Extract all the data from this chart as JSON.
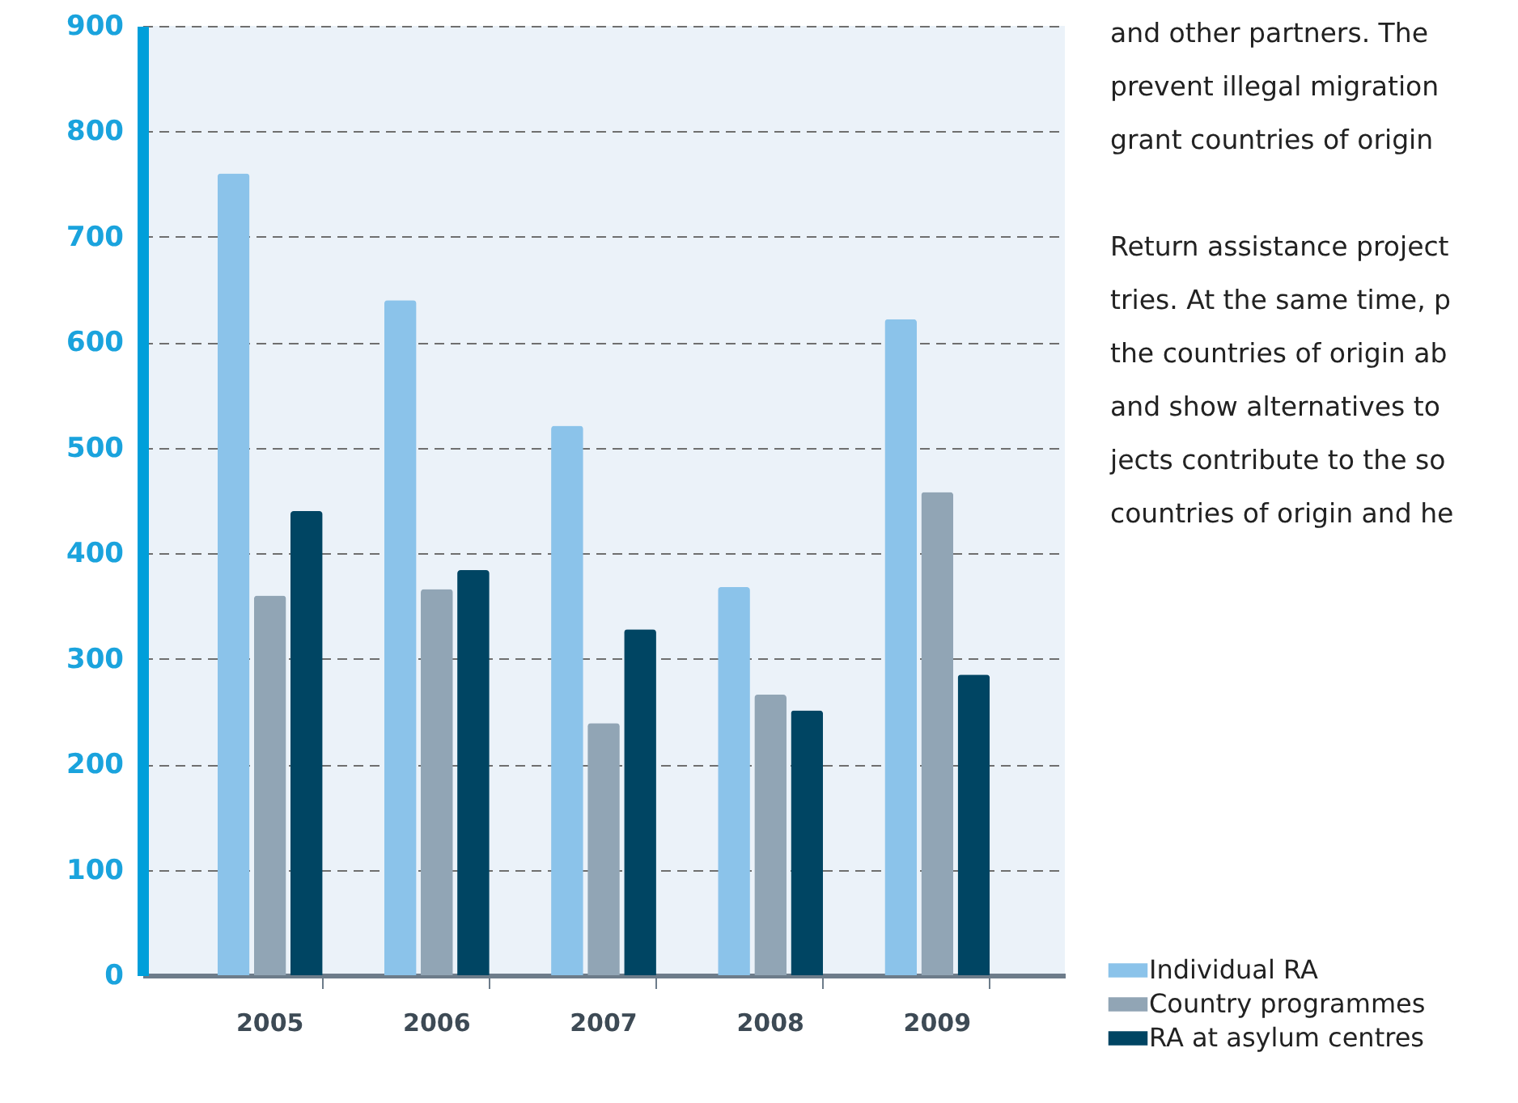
{
  "chart_data": {
    "type": "bar",
    "categories": [
      "2005",
      "2006",
      "2007",
      "2008",
      "2009"
    ],
    "series": [
      {
        "name": "Individual RA",
        "color": "#8bc3ea",
        "values": [
          760,
          640,
          521,
          368,
          622
        ]
      },
      {
        "name": "Country programmes",
        "color": "#91a5b5",
        "values": [
          360,
          366,
          239,
          266,
          458
        ]
      },
      {
        "name": "RA at asylum centres",
        "color": "#004563",
        "values": [
          440,
          384,
          328,
          251,
          285
        ]
      }
    ],
    "ylim": [
      0,
      900
    ],
    "yticks": [
      0,
      100,
      200,
      300,
      400,
      500,
      600,
      700,
      800,
      900
    ],
    "grid": "y",
    "legend": "bottom right",
    "annotations": [
      "and other partners. The\nprevent illegal migration\ngrant countries of origin",
      "Return assistance project\ntries. At the same time, p\nthe countries of origin ab\nand show alternatives to\njects contribute to the so\ncountries of origin and he"
    ]
  }
}
